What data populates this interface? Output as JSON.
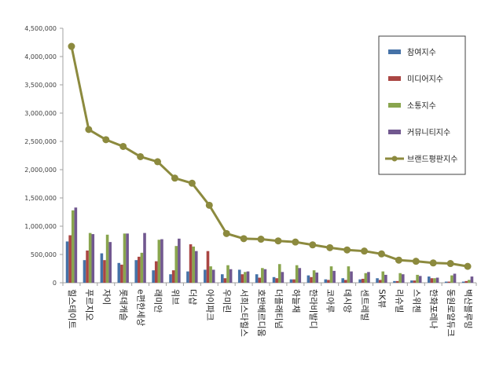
{
  "chart_data": {
    "type": "bar",
    "categories": [
      "힐스테이트",
      "푸르지오",
      "자이",
      "롯데캐슬",
      "e편한세상",
      "래미안",
      "위브",
      "더샵",
      "아이파크",
      "우미린",
      "서희스타힐스",
      "호반베르디움",
      "더플래티넘",
      "하늘채",
      "한라비발디",
      "코아루",
      "데시앙",
      "센트레빌",
      "SK뷰",
      "리슈빌",
      "스위첸",
      "한화포레나",
      "동원로얄듀크",
      "벽산블루밍"
    ],
    "series": [
      {
        "name": "참여지수",
        "type": "bar",
        "color": "#4572a7",
        "values": [
          730000,
          400000,
          520000,
          350000,
          400000,
          220000,
          150000,
          200000,
          230000,
          150000,
          230000,
          150000,
          100000,
          60000,
          130000,
          60000,
          80000,
          60000,
          80000,
          30000,
          40000,
          110000,
          20000,
          20000
        ]
      },
      {
        "name": "미디어지수",
        "type": "bar",
        "color": "#aa4643",
        "values": [
          840000,
          570000,
          400000,
          320000,
          460000,
          380000,
          220000,
          680000,
          560000,
          80000,
          150000,
          90000,
          80000,
          60000,
          100000,
          50000,
          50000,
          70000,
          50000,
          30000,
          40000,
          80000,
          20000,
          30000
        ]
      },
      {
        "name": "소통지수",
        "type": "bar",
        "color": "#89a54e",
        "values": [
          1280000,
          880000,
          850000,
          870000,
          530000,
          760000,
          650000,
          640000,
          290000,
          310000,
          190000,
          260000,
          330000,
          310000,
          220000,
          290000,
          290000,
          170000,
          200000,
          170000,
          140000,
          80000,
          130000,
          50000
        ]
      },
      {
        "name": "커뮤니티지수",
        "type": "bar",
        "color": "#71588f",
        "values": [
          1330000,
          860000,
          720000,
          870000,
          880000,
          770000,
          780000,
          560000,
          230000,
          240000,
          200000,
          240000,
          190000,
          260000,
          180000,
          210000,
          200000,
          190000,
          140000,
          150000,
          120000,
          90000,
          160000,
          110000
        ]
      },
      {
        "name": "브랜드평판지수",
        "type": "line",
        "color": "#8c8a3e",
        "values": [
          4180000,
          2710000,
          2530000,
          2410000,
          2230000,
          2140000,
          1850000,
          1760000,
          1370000,
          870000,
          780000,
          770000,
          740000,
          720000,
          670000,
          620000,
          580000,
          560000,
          510000,
          400000,
          380000,
          350000,
          340000,
          290000
        ]
      }
    ],
    "ylim": [
      0,
      4500000
    ],
    "yticks": [
      "0",
      "500,000",
      "1,000,000",
      "1,500,000",
      "2,000,000",
      "2,500,000",
      "3,000,000",
      "3,500,000",
      "4,000,000",
      "4,500,000"
    ],
    "legend_position": "top-right",
    "grid": false
  }
}
